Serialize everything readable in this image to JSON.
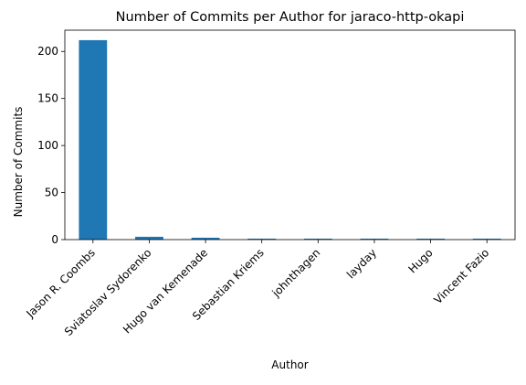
{
  "chart_data": {
    "type": "bar",
    "title": "Number of Commits per Author for jaraco-http-okapi",
    "xlabel": "Author",
    "ylabel": "Number of Commits",
    "categories": [
      "Jason R. Coombs",
      "Sviatoslav Sydorenko",
      "Hugo van Kemenade",
      "Sebastian Kriems",
      "johnthagen",
      "layday",
      "Hugo",
      "Vincent Fazio"
    ],
    "values": [
      212,
      3,
      2,
      1,
      1,
      1,
      1,
      1
    ],
    "ylim": [
      0,
      222.6
    ],
    "yticks": [
      0,
      50,
      100,
      150,
      200
    ],
    "grid": false,
    "legend": false,
    "bar_color": "#1f77b4"
  }
}
